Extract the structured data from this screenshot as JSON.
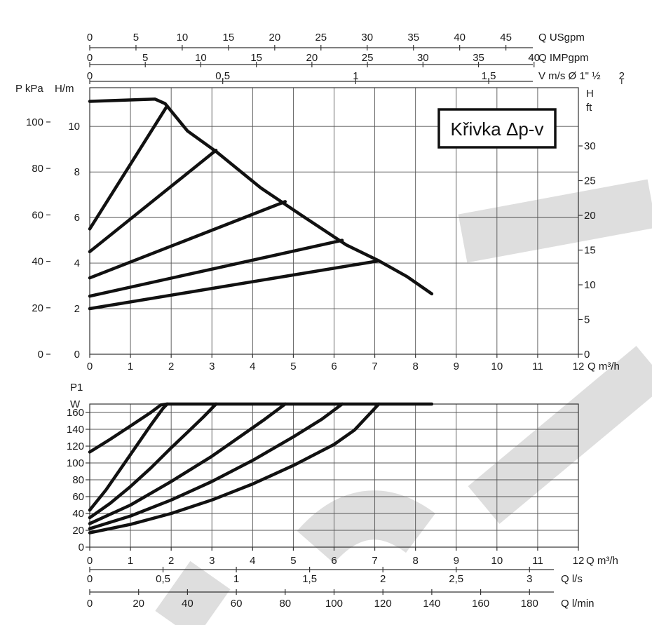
{
  "chart_data": [
    {
      "type": "line",
      "name": "pressure-curve",
      "title": "Křivka Δp-v",
      "ylabel_left_outer": "P kPa",
      "ylabel_left": "H/m",
      "ylabel_right": "H",
      "ylabel_right_unit": "ft",
      "xlabel": "Q m³/h",
      "xlim": [
        0,
        12
      ],
      "ylim": [
        0,
        11.7
      ],
      "x_ticks": [
        0,
        1,
        2,
        3,
        4,
        5,
        6,
        7,
        8,
        9,
        10,
        11,
        12
      ],
      "y_ticks_h": [
        0,
        2,
        4,
        6,
        8,
        10
      ],
      "y_ticks_kpa": [
        {
          "value": 0,
          "label": "0"
        },
        {
          "value": 20,
          "label": "20"
        },
        {
          "value": 40,
          "label": "40"
        },
        {
          "value": 60,
          "label": "60"
        },
        {
          "value": 80,
          "label": "80"
        },
        {
          "value": 100,
          "label": "100"
        }
      ],
      "y_ticks_ft": [
        {
          "value": 0,
          "label": "0"
        },
        {
          "value": 5,
          "label": "5"
        },
        {
          "value": 10,
          "label": "10"
        },
        {
          "value": 15,
          "label": "15"
        },
        {
          "value": 20,
          "label": "20"
        },
        {
          "value": 25,
          "label": "25"
        },
        {
          "value": 30,
          "label": "30"
        }
      ],
      "top_axes": [
        {
          "label": "Q USgpm",
          "factor": 4.403,
          "ticks": [
            0,
            5,
            10,
            15,
            20,
            25,
            30,
            35,
            40,
            45
          ]
        },
        {
          "label": "Q IMPgpm",
          "factor": 3.666,
          "ticks": [
            0,
            5,
            10,
            15,
            20,
            25,
            30,
            35,
            40
          ]
        },
        {
          "label": "V m/s Ø 1\" ½",
          "factor": 0.1531,
          "ticks": [
            {
              "value": 0,
              "label": "0"
            },
            {
              "value": 0.5,
              "label": "0,5"
            },
            {
              "value": 1,
              "label": "1"
            },
            {
              "value": 1.5,
              "label": "1,5"
            },
            {
              "value": 2,
              "label": "2"
            }
          ]
        }
      ],
      "series": [
        {
          "name": "max",
          "x": [
            0,
            1.6,
            1.85,
            2.4,
            3.1,
            4.2,
            5.2,
            6.3,
            7.1,
            7.8,
            8.4
          ],
          "y": [
            11.1,
            11.2,
            11.0,
            9.8,
            8.9,
            7.3,
            6.1,
            4.8,
            4.1,
            3.4,
            2.65
          ]
        },
        {
          "name": "step-1",
          "x": [
            0,
            1.9
          ],
          "y": [
            5.5,
            10.9
          ]
        },
        {
          "name": "step-2",
          "x": [
            0,
            3.1
          ],
          "y": [
            4.5,
            8.95
          ]
        },
        {
          "name": "step-3",
          "x": [
            0,
            4.8
          ],
          "y": [
            3.35,
            6.7
          ]
        },
        {
          "name": "step-4",
          "x": [
            0,
            6.2
          ],
          "y": [
            2.55,
            5.0
          ]
        },
        {
          "name": "step-5",
          "x": [
            0,
            7.1
          ],
          "y": [
            2.0,
            4.1
          ]
        }
      ]
    },
    {
      "type": "line",
      "name": "power-curve",
      "ylabel": "P1",
      "ylabel_unit": "W",
      "xlabel": "Q m³/h",
      "xlim": [
        0,
        12
      ],
      "ylim": [
        0,
        170
      ],
      "x_ticks": [
        0,
        1,
        2,
        3,
        4,
        5,
        6,
        7,
        8,
        9,
        10,
        11,
        12
      ],
      "y_ticks": [
        0,
        20,
        40,
        60,
        80,
        100,
        120,
        140,
        160
      ],
      "bottom_axes": [
        {
          "label": "Q l/s",
          "factor": 0.2778,
          "ticks": [
            {
              "value": 0,
              "label": "0"
            },
            {
              "value": 0.5,
              "label": "0,5"
            },
            {
              "value": 1,
              "label": "1"
            },
            {
              "value": 1.5,
              "label": "1,5"
            },
            {
              "value": 2,
              "label": "2"
            },
            {
              "value": 2.5,
              "label": "2,5"
            },
            {
              "value": 3,
              "label": "3"
            }
          ]
        },
        {
          "label": "Q l/min",
          "factor": 16.667,
          "ticks": [
            0,
            20,
            40,
            60,
            80,
            100,
            120,
            140,
            160,
            180
          ]
        }
      ],
      "series": [
        {
          "name": "max",
          "x": [
            0,
            0.5,
            1.0,
            1.5,
            1.75,
            1.9,
            8.4
          ],
          "y": [
            113,
            128,
            144,
            160,
            169,
            170,
            170
          ]
        },
        {
          "name": "step-1",
          "x": [
            0,
            0.4,
            0.8,
            1.2,
            1.5,
            1.8,
            1.9
          ],
          "y": [
            44,
            68,
            96,
            124,
            145,
            165,
            170
          ]
        },
        {
          "name": "step-2",
          "x": [
            0,
            0.5,
            1.0,
            1.5,
            2.0,
            2.5,
            2.8,
            3.1
          ],
          "y": [
            35,
            52,
            72,
            94,
            118,
            141,
            155,
            170
          ]
        },
        {
          "name": "step-3",
          "x": [
            0,
            1.0,
            2.0,
            3.0,
            3.8,
            4.3,
            4.8
          ],
          "y": [
            28,
            50,
            78,
            108,
            135,
            152,
            170
          ]
        },
        {
          "name": "step-4",
          "x": [
            0,
            1.0,
            2.0,
            3.0,
            4.0,
            5.0,
            5.7,
            6.2
          ],
          "y": [
            22,
            37,
            56,
            78,
            103,
            131,
            152,
            170
          ]
        },
        {
          "name": "step-5",
          "x": [
            0,
            1.0,
            2.0,
            3.0,
            4.0,
            5.0,
            6.0,
            6.5,
            7.1
          ],
          "y": [
            17,
            27,
            40,
            56,
            75,
            97,
            122,
            139,
            170
          ]
        }
      ]
    }
  ],
  "watermark": "CZ"
}
